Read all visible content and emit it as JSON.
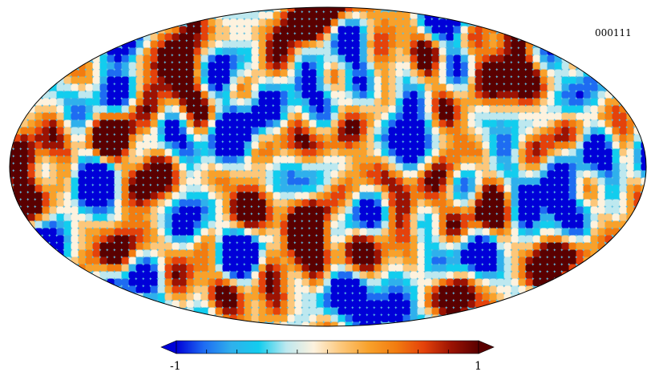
{
  "map": {
    "label": "000111",
    "projection": "mollweide",
    "colormap": [
      "#0000d8",
      "#1e6cf2",
      "#2fb0ec",
      "#12cdee",
      "#bde8ef",
      "#fdf2de",
      "#fcc77a",
      "#f8a12b",
      "#f27c10",
      "#e4420b",
      "#9c1303",
      "#5a0000"
    ]
  },
  "colorbar": {
    "min_label": "-1",
    "max_label": "1",
    "range": [
      -1,
      1
    ]
  }
}
